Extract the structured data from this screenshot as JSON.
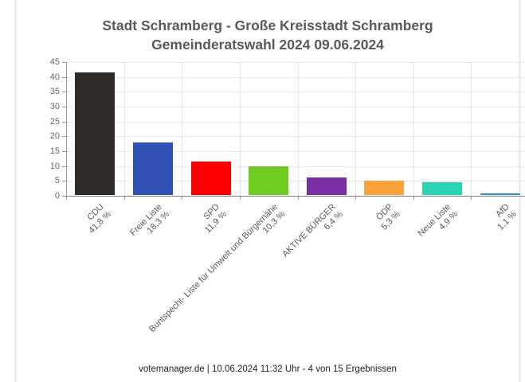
{
  "card": {
    "title_line1": "Stadt Schramberg - Große Kreisstadt Schramberg",
    "title_line2": "Gemeinderatswahl 2024 09.06.2024",
    "footer": "votemanager.de | 10.06.2024 11:32 Uhr - 4 von 15 Ergebnissen"
  },
  "chart_data": {
    "type": "bar",
    "title": "Stadt Schramberg - Große Kreisstadt Schramberg",
    "subtitle": "Gemeinderatswahl 2024 09.06.2024",
    "categories": [
      "CDU",
      "Freie Liste",
      "SPD",
      "Buntspecht- Liste für Umwelt und Bürgernähe",
      "AKTIVE BÜRGER",
      "ÖDP",
      "Neue Liste",
      "AfD"
    ],
    "values": [
      41.8,
      18.3,
      11.9,
      10.3,
      6.4,
      5.3,
      4.9,
      1.1
    ],
    "value_labels": [
      "41,8 %",
      "18,3 %",
      "11,9 %",
      "10,3 %",
      "6,4 %",
      "5,3 %",
      "4,9 %",
      "1,1 %"
    ],
    "colors": [
      "#2e2c2b",
      "#3051b5",
      "#fc0000",
      "#6fcb1f",
      "#7b2fa5",
      "#f9a13a",
      "#2bd5b1",
      "#2e8fc0"
    ],
    "xlabel": "",
    "ylabel": "",
    "ylim": [
      0,
      45
    ],
    "ytick_step": 5,
    "grid": true,
    "legend": "none"
  }
}
